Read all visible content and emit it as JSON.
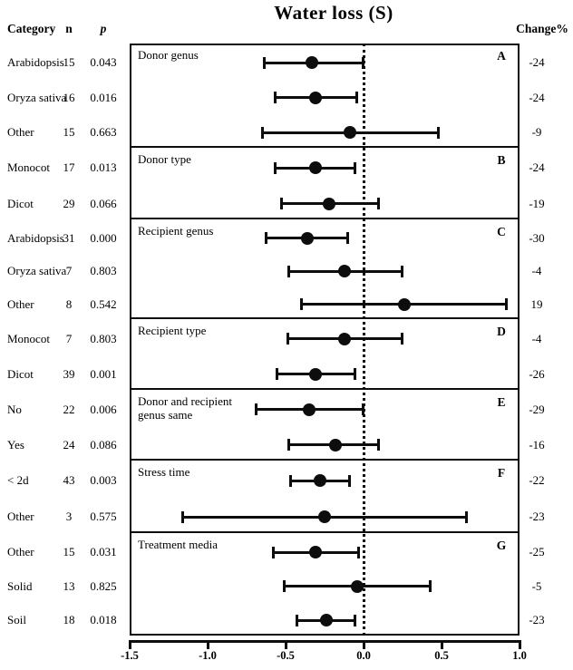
{
  "figure": {
    "title": "Water loss (S)",
    "columns": {
      "category": "Category",
      "n": "n",
      "p": "p"
    },
    "change_header": "Change%"
  },
  "chart_data": {
    "type": "forest",
    "title": "Water loss (S)",
    "xlim": [
      -1.5,
      1.0
    ],
    "reference_line": 0.0,
    "grid": false,
    "x_ticks": [
      {
        "value": -1.5,
        "label": "-1.5"
      },
      {
        "value": -1.0,
        "label": "-1.0"
      },
      {
        "value": -0.5,
        "label": "-0.5"
      },
      {
        "value": 0.0,
        "label": "0.0"
      },
      {
        "value": 0.5,
        "label": "0.5"
      },
      {
        "value": 1.0,
        "label": "1.0"
      }
    ],
    "left_column_headers": [
      "Category",
      "n",
      "p"
    ],
    "right_column_header": "Change%",
    "panels": [
      {
        "letter": "A",
        "label": "Donor genus",
        "rows": [
          {
            "category": "Arabidopsis",
            "n": 15,
            "p": "0.043",
            "mean": -0.33,
            "lo": -0.64,
            "hi": 0.0,
            "change": "-24"
          },
          {
            "category": "Oryza sativa",
            "n": 16,
            "p": "0.016",
            "mean": -0.31,
            "lo": -0.57,
            "hi": -0.04,
            "change": "-24"
          },
          {
            "category": "Other",
            "n": 15,
            "p": "0.663",
            "mean": -0.09,
            "lo": -0.65,
            "hi": 0.48,
            "change": "-9"
          }
        ]
      },
      {
        "letter": "B",
        "label": "Donor type",
        "rows": [
          {
            "category": "Monocot",
            "n": 17,
            "p": "0.013",
            "mean": -0.31,
            "lo": -0.57,
            "hi": -0.05,
            "change": "-24"
          },
          {
            "category": "Dicot",
            "n": 29,
            "p": "0.066",
            "mean": -0.22,
            "lo": -0.53,
            "hi": 0.1,
            "change": "-19"
          }
        ]
      },
      {
        "letter": "C",
        "label": "Recipient genus",
        "rows": [
          {
            "category": "Arabidopsis",
            "n": 31,
            "p": "0.000",
            "mean": -0.36,
            "lo": -0.63,
            "hi": -0.1,
            "change": "-30"
          },
          {
            "category": "Oryza sativa",
            "n": 7,
            "p": "0.803",
            "mean": -0.12,
            "lo": -0.48,
            "hi": 0.25,
            "change": "-4"
          },
          {
            "category": "Other",
            "n": 8,
            "p": "0.542",
            "mean": 0.26,
            "lo": -0.4,
            "hi": 0.92,
            "change": "19"
          }
        ]
      },
      {
        "letter": "D",
        "label": "Recipient type",
        "rows": [
          {
            "category": "Monocot",
            "n": 7,
            "p": "0.803",
            "mean": -0.12,
            "lo": -0.49,
            "hi": 0.25,
            "change": "-4"
          },
          {
            "category": "Dicot",
            "n": 39,
            "p": "0.001",
            "mean": -0.31,
            "lo": -0.56,
            "hi": -0.05,
            "change": "-26"
          }
        ]
      },
      {
        "letter": "E",
        "label": "Donor and recipient\ngenus same",
        "rows": [
          {
            "category": "No",
            "n": 22,
            "p": "0.006",
            "mean": -0.35,
            "lo": -0.69,
            "hi": 0.0,
            "change": "-29"
          },
          {
            "category": "Yes",
            "n": 24,
            "p": "0.086",
            "mean": -0.18,
            "lo": -0.48,
            "hi": 0.1,
            "change": "-16"
          }
        ]
      },
      {
        "letter": "F",
        "label": "Stress time",
        "rows": [
          {
            "category": "< 2d",
            "n": 43,
            "p": "0.003",
            "mean": -0.28,
            "lo": -0.47,
            "hi": -0.09,
            "change": "-22"
          },
          {
            "category": "Other",
            "n": 3,
            "p": "0.575",
            "mean": -0.25,
            "lo": -1.16,
            "hi": 0.66,
            "change": "-23"
          }
        ]
      },
      {
        "letter": "G",
        "label": "Treatment media",
        "rows": [
          {
            "category": "Other",
            "n": 15,
            "p": "0.031",
            "mean": -0.31,
            "lo": -0.58,
            "hi": -0.03,
            "change": "-25"
          },
          {
            "category": "Solid",
            "n": 13,
            "p": "0.825",
            "mean": -0.04,
            "lo": -0.51,
            "hi": 0.43,
            "change": "-5"
          },
          {
            "category": "Soil",
            "n": 18,
            "p": "0.018",
            "mean": -0.24,
            "lo": -0.43,
            "hi": -0.05,
            "change": "-23"
          }
        ]
      }
    ]
  }
}
